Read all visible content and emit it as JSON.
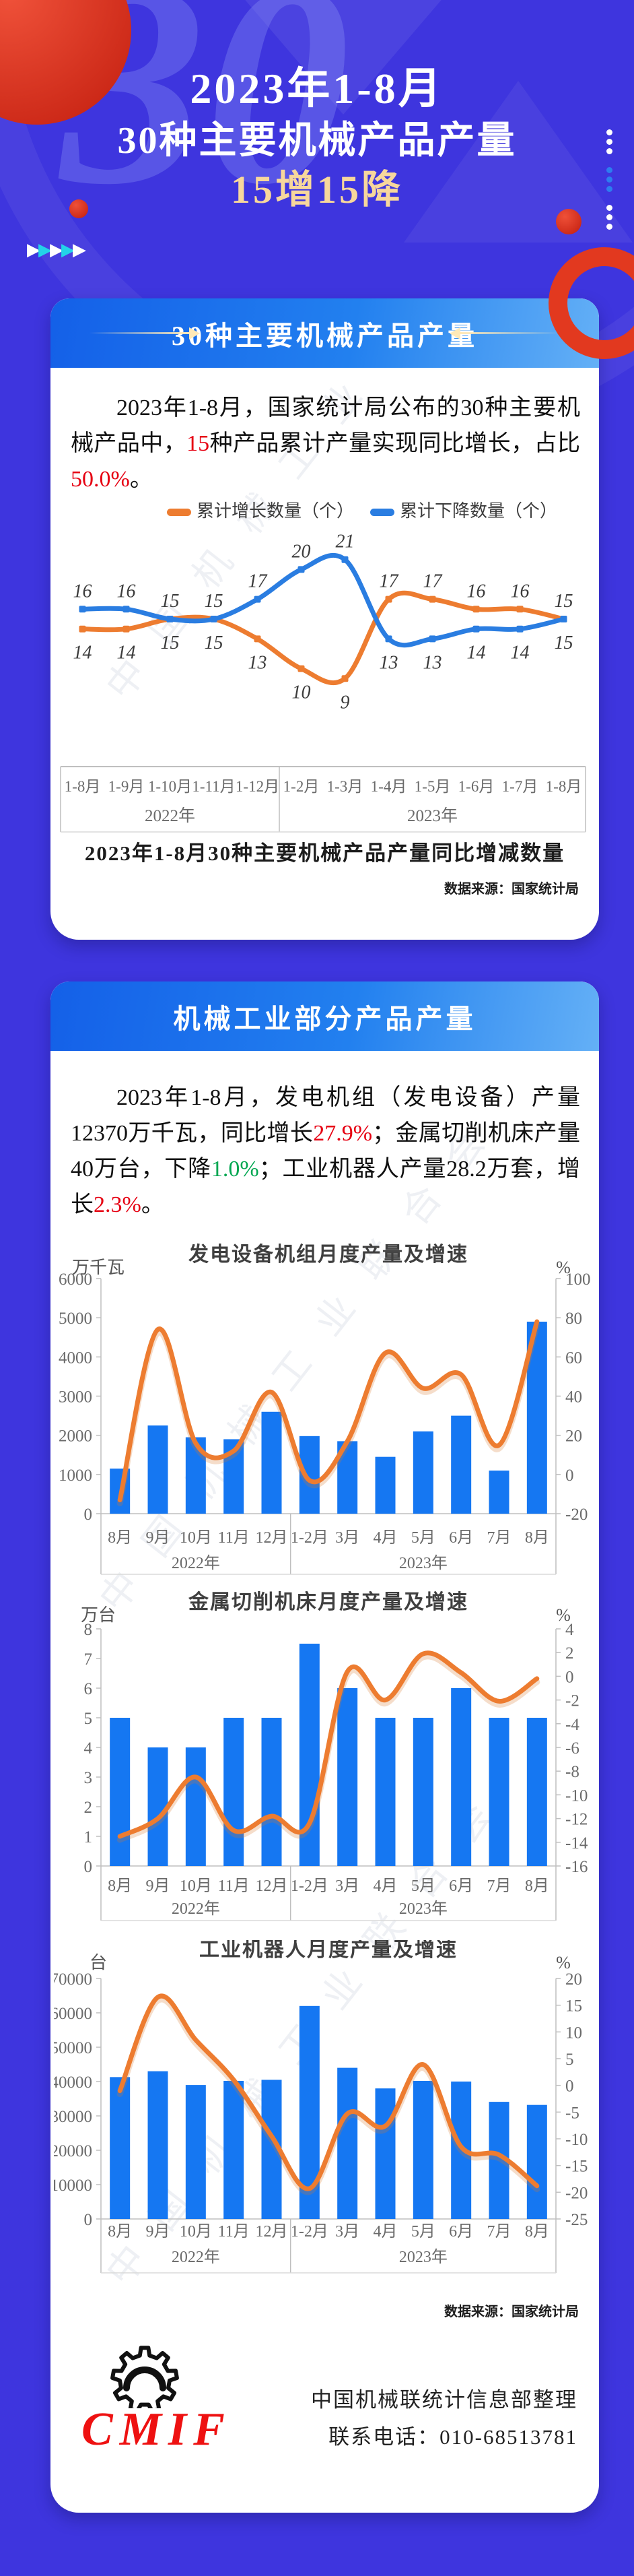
{
  "header": {
    "line1": "2023年1-8月",
    "line2": "30种主要机械产品产量",
    "line3": "15增15降",
    "watermark_number": "30"
  },
  "palette": {
    "background": "#3e35de",
    "banner_blue_start": "#1460e8",
    "banner_blue_end": "#64b0f6",
    "bar_blue": "#1577f2",
    "line_orange": "#ed7c30",
    "series_blue": "#2a7de1",
    "highlight_red": "#e60012",
    "highlight_green": "#00a650",
    "gold_text": "#f7d79c",
    "accent_red": "#e2391f",
    "teal_arrow": "#23d3e8"
  },
  "watermark_text": "中国机械工业联合会",
  "section1": {
    "banner": "30种主要机械产品产量",
    "paragraph": [
      {
        "t": "2023年1-8月，国家统计局公布的30种主要机械产品中，"
      },
      {
        "t": "15",
        "c": "red"
      },
      {
        "t": "种产品累计产量实现同比增长，占比"
      },
      {
        "t": "50.0%",
        "c": "red"
      },
      {
        "t": "。"
      }
    ],
    "source": "数据来源：国家统计局"
  },
  "section2": {
    "banner": "机械工业部分产品产量",
    "paragraph": [
      {
        "t": "2023年1-8月，发电机组（发电设备）产量12370万千瓦，同比增长"
      },
      {
        "t": "27.9%",
        "c": "red"
      },
      {
        "t": "；金属切削机床产量40万台，下降"
      },
      {
        "t": "1.0%",
        "c": "green"
      },
      {
        "t": "；工业机器人产量28.2万套，增长"
      },
      {
        "t": "2.3%",
        "c": "red"
      },
      {
        "t": "。"
      }
    ],
    "source": "数据来源：国家统计局"
  },
  "footer": {
    "logo": "CMIF",
    "line1": "中国机械联统计信息部整理",
    "line2": "联系电话：010-68513781"
  },
  "chart_data": [
    {
      "id": "updown",
      "type": "line",
      "title": "2023年1-8月30种主要机械产品产量同比增减数量",
      "categories": [
        "1-8月",
        "1-9月",
        "1-10月",
        "1-11月",
        "1-12月",
        "1-2月",
        "1-3月",
        "1-4月",
        "1-5月",
        "1-6月",
        "1-7月",
        "1-8月"
      ],
      "year_groups": [
        {
          "label": "2022年",
          "span": 5
        },
        {
          "label": "2023年",
          "span": 7
        }
      ],
      "series": [
        {
          "name": "累计增长数量（个）",
          "color": "#ed7c30",
          "values": [
            14,
            14,
            15,
            15,
            13,
            10,
            9,
            17,
            17,
            16,
            16,
            15
          ]
        },
        {
          "name": "累计下降数量（个）",
          "color": "#2a7de1",
          "values": [
            16,
            16,
            15,
            15,
            17,
            20,
            21,
            13,
            13,
            14,
            14,
            15
          ]
        }
      ],
      "ylim": [
        8,
        22
      ],
      "grid": false,
      "legend_position": "top"
    },
    {
      "id": "power",
      "type": "combo",
      "title": "发电设备机组月度产量及增速",
      "unit_left": "万千瓦",
      "unit_right": "%",
      "left_axis": {
        "min": 0,
        "max": 6000,
        "step": 1000
      },
      "right_axis": {
        "min": -20,
        "max": 100,
        "step": 20
      },
      "categories": [
        "8月",
        "9月",
        "10月",
        "11月",
        "12月",
        "1-2月",
        "3月",
        "4月",
        "5月",
        "6月",
        "7月",
        "8月"
      ],
      "year_groups": [
        {
          "label": "2022年",
          "span": 5
        },
        {
          "label": "2023年",
          "span": 7
        }
      ],
      "bars": {
        "name": "月度产量",
        "color": "#1577f2",
        "values": [
          1150,
          2250,
          1950,
          1900,
          2600,
          1980,
          1850,
          1450,
          2100,
          2500,
          1100,
          4900
        ]
      },
      "line": {
        "name": "增速",
        "color": "#ed7c30",
        "values": [
          -13,
          74,
          16,
          12,
          42,
          -3,
          17,
          62,
          44,
          51,
          15,
          78
        ]
      }
    },
    {
      "id": "machine-tools",
      "type": "combo",
      "title": "金属切削机床月度产量及增速",
      "unit_left": "万台",
      "unit_right": "%",
      "left_axis": {
        "min": 0,
        "max": 8,
        "step": 1
      },
      "right_axis": {
        "min": -16,
        "max": 4,
        "step": 2
      },
      "categories": [
        "8月",
        "9月",
        "10月",
        "11月",
        "12月",
        "1-2月",
        "3月",
        "4月",
        "5月",
        "6月",
        "7月",
        "8月"
      ],
      "year_groups": [
        {
          "label": "2022年",
          "span": 5
        },
        {
          "label": "2023年",
          "span": 7
        }
      ],
      "bars": {
        "name": "月度产量",
        "color": "#1577f2",
        "values": [
          5,
          4,
          4,
          5,
          5,
          7.5,
          6,
          5,
          5,
          6,
          5,
          5
        ]
      },
      "line": {
        "name": "增速",
        "color": "#ed7c30",
        "values": [
          -13.5,
          -12,
          -8.5,
          -13,
          -11.8,
          -12.4,
          0.4,
          -2,
          1.9,
          0.3,
          -2.1,
          -0.2
        ]
      }
    },
    {
      "id": "robots",
      "type": "combo",
      "title": "工业机器人月度产量及增速",
      "unit_left": "台",
      "unit_right": "%",
      "left_axis": {
        "min": 0,
        "max": 70000,
        "step": 10000
      },
      "right_axis": {
        "min": -25,
        "max": 20,
        "step": 5
      },
      "categories": [
        "8月",
        "9月",
        "10月",
        "11月",
        "12月",
        "1-2月",
        "3月",
        "4月",
        "5月",
        "6月",
        "7月",
        "8月"
      ],
      "year_groups": [
        {
          "label": "2022年",
          "span": 5
        },
        {
          "label": "2023年",
          "span": 7
        }
      ],
      "bars": {
        "name": "月度产量",
        "color": "#1577f2",
        "values": [
          41300,
          43000,
          39000,
          40200,
          40500,
          62000,
          44000,
          38000,
          40200,
          40000,
          34100,
          33200
        ]
      },
      "line": {
        "name": "增速",
        "color": "#ed7c30",
        "values": [
          -1,
          16.5,
          8.5,
          1,
          -9.5,
          -19.3,
          -5.3,
          -7.6,
          3.9,
          -11.5,
          -13,
          -18.8
        ]
      }
    }
  ]
}
